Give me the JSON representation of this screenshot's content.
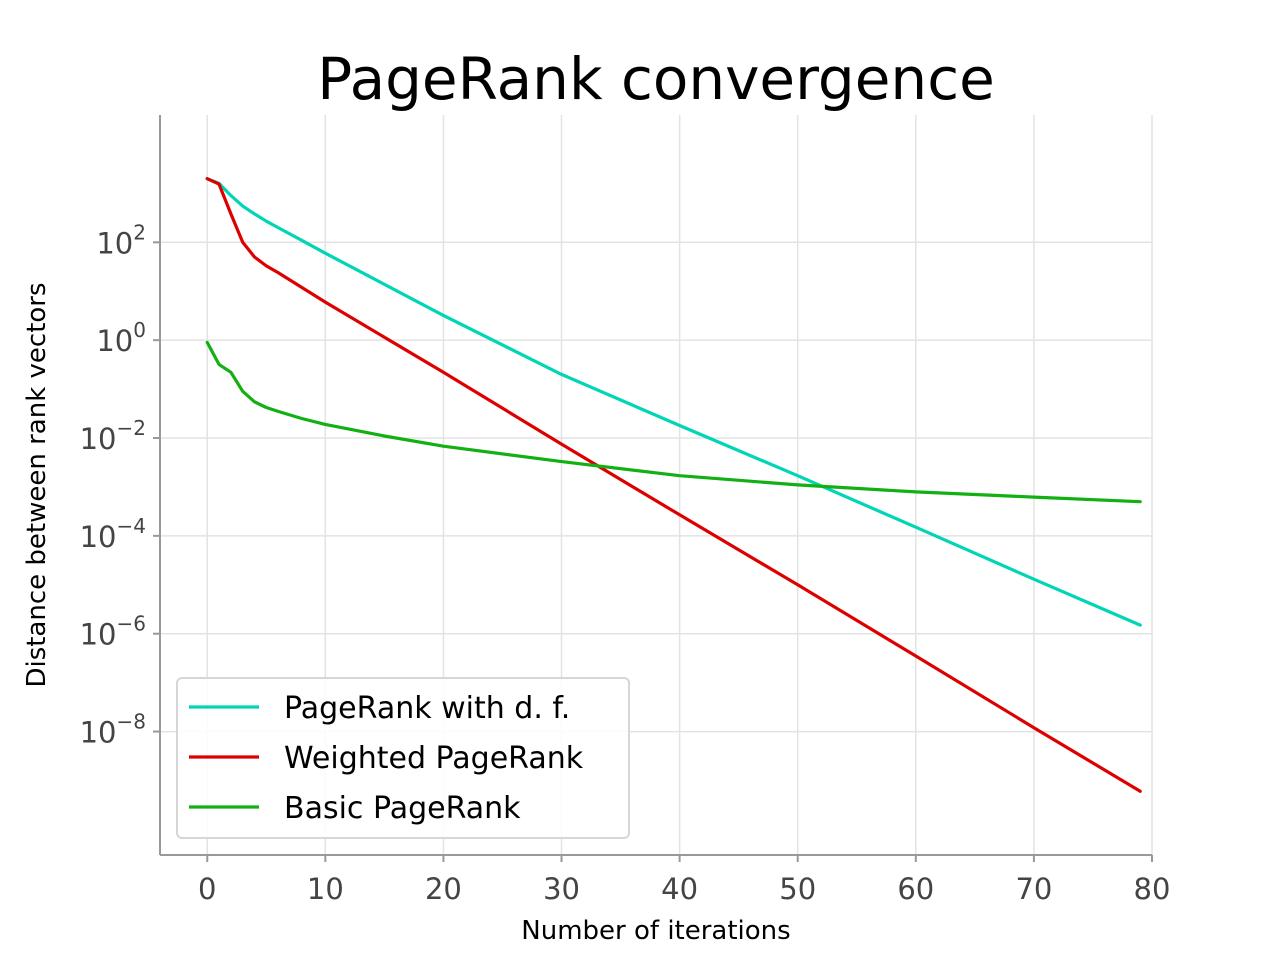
{
  "chart_data": {
    "type": "line",
    "title": "PageRank convergence",
    "xlabel": "Number of iterations",
    "ylabel": "Distance between rank vectors",
    "yscale": "log",
    "xlim": [
      -4,
      80
    ],
    "ylim": [
      3e-11,
      40000.0
    ],
    "grid": true,
    "legend_position": "lower-left",
    "x_ticks": [
      0,
      10,
      20,
      30,
      40,
      50,
      60,
      70,
      80
    ],
    "x_tick_labels": [
      "0",
      "10",
      "20",
      "30",
      "40",
      "50",
      "60",
      "70",
      "80"
    ],
    "y_ticks": [
      100.0,
      1,
      0.01,
      0.0001,
      1e-06,
      1e-08
    ],
    "y_tick_labels": [
      {
        "base": "10",
        "exp": "2"
      },
      {
        "base": "10",
        "exp": "0"
      },
      {
        "base": "10",
        "exp": "−2"
      },
      {
        "base": "10",
        "exp": "−4"
      },
      {
        "base": "10",
        "exp": "−6"
      },
      {
        "base": "10",
        "exp": "−8"
      }
    ],
    "series": [
      {
        "name": "PageRank with d. f.",
        "color": "#00d5b5",
        "x": [
          0,
          1,
          2,
          3,
          4,
          5,
          6,
          8,
          10,
          20,
          30,
          40,
          50,
          60,
          70,
          79
        ],
        "y": [
          2000,
          1600,
          900,
          550,
          380,
          270,
          200,
          110,
          60,
          3.2,
          0.2,
          0.018,
          0.0017,
          0.00015,
          1.3e-05,
          1.5e-06
        ]
      },
      {
        "name": "Weighted PageRank",
        "color": "#dd0000",
        "x": [
          0,
          1,
          2,
          3,
          4,
          5,
          6,
          8,
          10,
          20,
          30,
          40,
          50,
          60,
          70,
          79
        ],
        "y": [
          2000,
          1550,
          380,
          100,
          50,
          33,
          24,
          12,
          6,
          0.22,
          0.0075,
          0.00027,
          1e-05,
          3.5e-07,
          1.2e-08,
          6e-10
        ]
      },
      {
        "name": "Basic PageRank",
        "color": "#12b012",
        "x": [
          0,
          1,
          2,
          3,
          4,
          5,
          6,
          8,
          10,
          15,
          20,
          30,
          40,
          50,
          60,
          70,
          79
        ],
        "y": [
          0.9,
          0.32,
          0.22,
          0.09,
          0.055,
          0.042,
          0.035,
          0.025,
          0.019,
          0.011,
          0.0068,
          0.0033,
          0.0017,
          0.0011,
          0.00079,
          0.00062,
          0.0005
        ]
      }
    ]
  }
}
